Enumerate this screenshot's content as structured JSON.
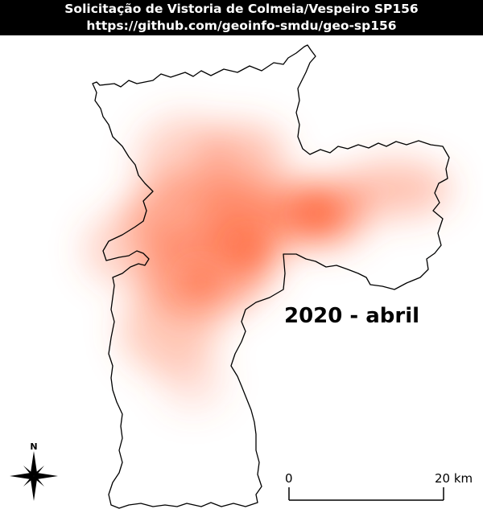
{
  "header": {
    "title": "Solicitação de Vistoria de Colmeia/Vespeiro SP156",
    "url": "https://github.com/geoinfo-smdu/geo-sp156"
  },
  "map": {
    "period_label": "2020 - abril",
    "heatmap_color": "#ff6a40",
    "boundary_color": "#000000"
  },
  "north_arrow": {
    "letter": "N",
    "icon": "compass-rose-icon"
  },
  "scale_bar": {
    "start_label": "0",
    "end_label": "20 km"
  }
}
